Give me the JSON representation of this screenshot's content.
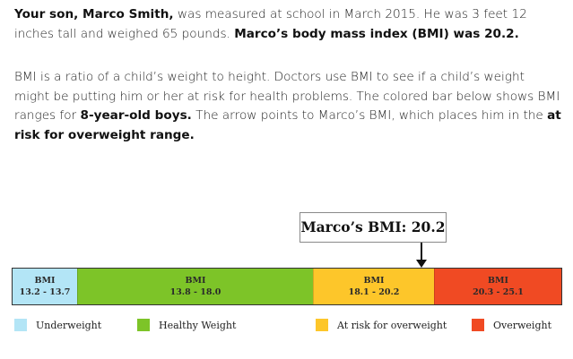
{
  "intro": {
    "p1_lead_bold": "Your son, Marco Smith,",
    "p1_text": " was measured at school in March 2015. He was 3 feet 12 inches tall and weighed 65 pounds. ",
    "p1_trail_bold": "Marco’s body mass index (BMI) was 20.2.",
    "p2_text_a": "BMI is a ratio of a child’s weight to height. Doctors use BMI to see if a child’s weight might be putting him or her at risk for health problems. The colored bar below shows BMI ranges for ",
    "p2_bold_a": "8-year-old boys.",
    "p2_text_b": " The arrow points to Marco’s BMI, which places him in the ",
    "p2_bold_b": "at risk for overweight range."
  },
  "marker": {
    "label": "Marco’s BMI: 20.2",
    "value": 20.2
  },
  "bar": {
    "segments": [
      {
        "title": "BMI",
        "range": "13.2 - 13.7",
        "color": "#b3e5f6"
      },
      {
        "title": "BMI",
        "range": "13.8 - 18.0",
        "color": "#7dc428"
      },
      {
        "title": "BMI",
        "range": "18.1 - 20.2",
        "color": "#fdc62a"
      },
      {
        "title": "BMI",
        "range": "20.3 - 25.1",
        "color": "#f04a23"
      }
    ]
  },
  "legend": [
    {
      "label": "Underweight",
      "color": "#b3e5f6"
    },
    {
      "label": "Healthy Weight",
      "color": "#7dc428"
    },
    {
      "label": "At risk for overweight",
      "color": "#fdc62a"
    },
    {
      "label": "Overweight",
      "color": "#f04a23"
    }
  ]
}
